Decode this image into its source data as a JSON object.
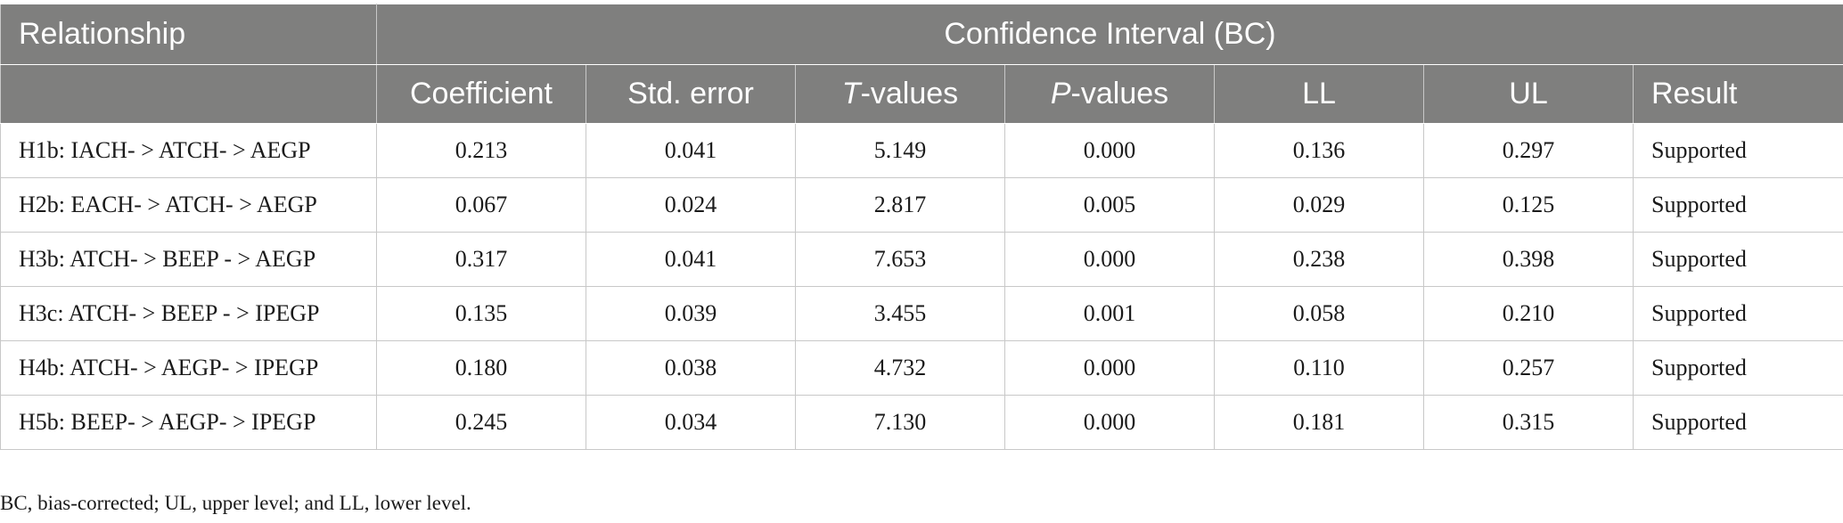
{
  "header": {
    "relationship": "Relationship",
    "ci_group": "Confidence Interval (BC)",
    "coefficient": "Coefficient",
    "std_error": "Std. error",
    "t_prefix": "T",
    "t_suffix": "-values",
    "p_prefix": "P",
    "p_suffix": "-values",
    "ll": "LL",
    "ul": "UL",
    "result": "Result"
  },
  "rows": [
    {
      "relationship": "H1b: IACH- > ATCH- > AEGP",
      "coefficient": "0.213",
      "std_error": "0.041",
      "t": "5.149",
      "p": "0.000",
      "ll": "0.136",
      "ul": "0.297",
      "result": "Supported"
    },
    {
      "relationship": "H2b: EACH- > ATCH- > AEGP",
      "coefficient": "0.067",
      "std_error": "0.024",
      "t": "2.817",
      "p": "0.005",
      "ll": "0.029",
      "ul": "0.125",
      "result": "Supported"
    },
    {
      "relationship": "H3b: ATCH- > BEEP - > AEGP",
      "coefficient": "0.317",
      "std_error": "0.041",
      "t": "7.653",
      "p": "0.000",
      "ll": "0.238",
      "ul": "0.398",
      "result": "Supported"
    },
    {
      "relationship": "H3c: ATCH- > BEEP - > IPEGP",
      "coefficient": "0.135",
      "std_error": "0.039",
      "t": "3.455",
      "p": "0.001",
      "ll": "0.058",
      "ul": "0.210",
      "result": "Supported"
    },
    {
      "relationship": "H4b: ATCH- > AEGP- > IPEGP",
      "coefficient": "0.180",
      "std_error": "0.038",
      "t": "4.732",
      "p": "0.000",
      "ll": "0.110",
      "ul": "0.257",
      "result": "Supported"
    },
    {
      "relationship": "H5b: BEEP- > AEGP- > IPEGP",
      "coefficient": "0.245",
      "std_error": "0.034",
      "t": "7.130",
      "p": "0.000",
      "ll": "0.181",
      "ul": "0.315",
      "result": "Supported"
    }
  ],
  "footnote": "BC, bias-corrected; UL, upper level; and LL, lower level."
}
